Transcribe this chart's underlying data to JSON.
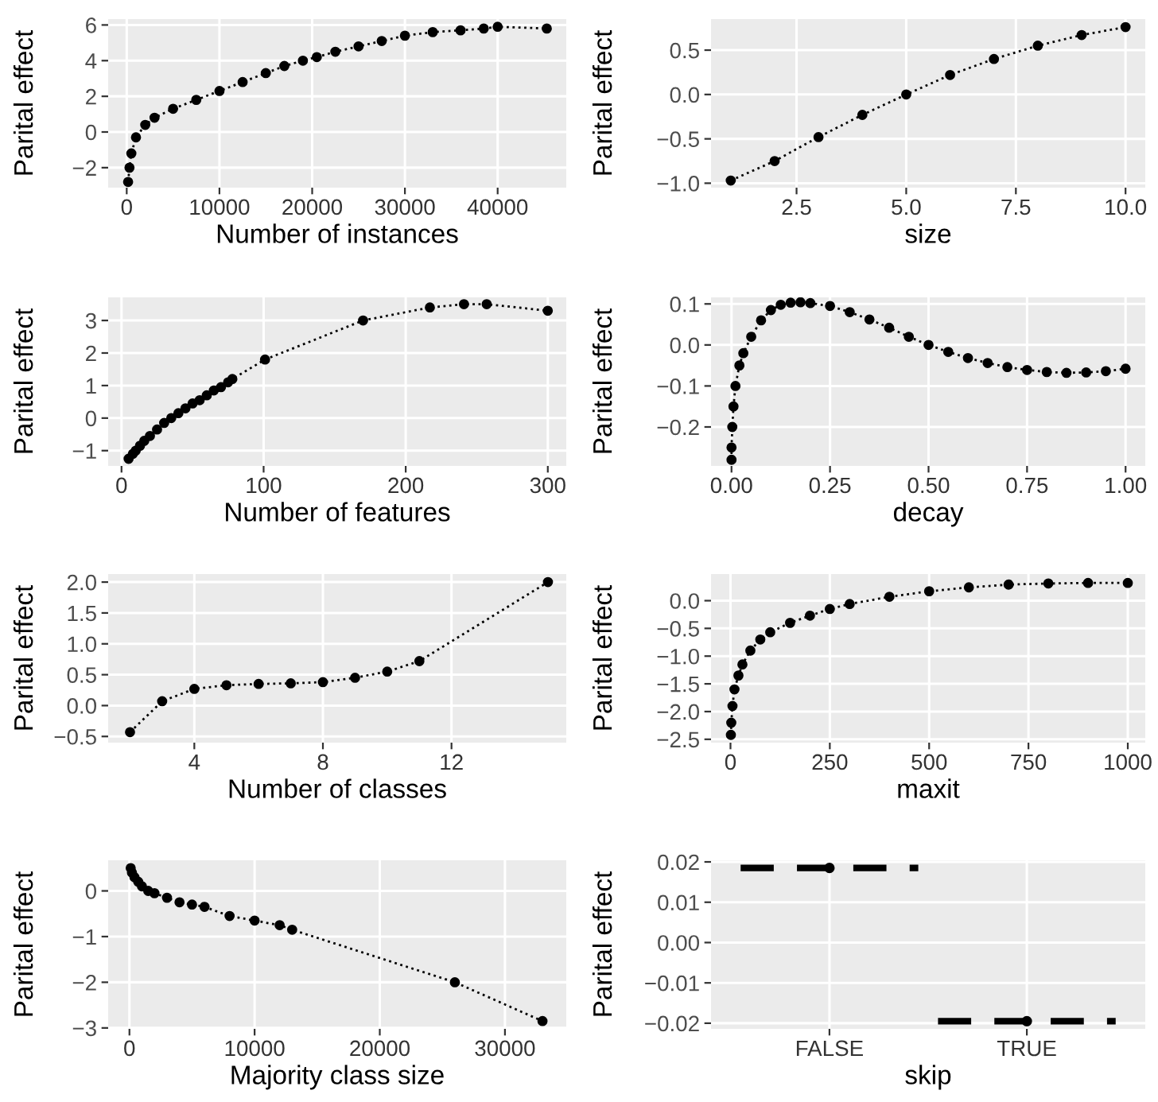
{
  "chart_data": [
    {
      "type": "line",
      "xlabel": "Number of instances",
      "ylabel": "Parital effect",
      "grid": true,
      "marker": "circle",
      "line_style": "dotted",
      "xlim": [
        -2000,
        47400
      ],
      "ylim": [
        -3.12,
        6.33
      ],
      "xticks": [
        0,
        10000,
        20000,
        30000,
        40000
      ],
      "yticks": [
        {
          "value": -2,
          "label": "−2"
        },
        0,
        2,
        4,
        6
      ],
      "x": [
        150,
        300,
        500,
        1000,
        2000,
        3000,
        5000,
        7500,
        10000,
        12500,
        15000,
        17000,
        19000,
        20500,
        22500,
        25000,
        27500,
        30000,
        33000,
        36000,
        38500,
        40000,
        45300
      ],
      "series": [
        {
          "color": "#000000",
          "values": [
            -2.8,
            -2.0,
            -1.2,
            -0.3,
            0.4,
            0.8,
            1.3,
            1.8,
            2.3,
            2.8,
            3.3,
            3.7,
            4.0,
            4.2,
            4.5,
            4.8,
            5.1,
            5.4,
            5.6,
            5.7,
            5.8,
            5.9,
            5.8
          ]
        }
      ]
    },
    {
      "type": "line",
      "xlabel": "size",
      "ylabel": "Parital effect",
      "grid": true,
      "marker": "circle",
      "line_style": "dotted",
      "xlim": [
        0.55,
        10.45
      ],
      "ylim": [
        -1.05,
        0.85
      ],
      "xticks": [
        2.5,
        {
          "value": 5,
          "label": "5.0"
        },
        7.5,
        {
          "value": 10,
          "label": "10.0"
        }
      ],
      "yticks": [
        {
          "value": -1,
          "label": "−1.0"
        },
        {
          "value": -0.5,
          "label": "−0.5"
        },
        {
          "value": 0,
          "label": "0.0"
        },
        0.5
      ],
      "x": [
        1,
        2,
        3,
        4,
        5,
        6,
        7,
        8,
        9,
        10
      ],
      "series": [
        {
          "color": "#000000",
          "values": [
            -0.97,
            -0.75,
            -0.48,
            -0.23,
            0.0,
            0.22,
            0.4,
            0.55,
            0.67,
            0.76
          ]
        }
      ]
    },
    {
      "type": "line",
      "xlabel": "Number of features",
      "ylabel": "Parital effect",
      "grid": true,
      "marker": "circle",
      "line_style": "dotted",
      "xlim": [
        -9.4,
        313
      ],
      "ylim": [
        -1.47,
        3.71
      ],
      "xticks": [
        0,
        100,
        200,
        300
      ],
      "yticks": [
        {
          "value": -1,
          "label": "−1"
        },
        0,
        1,
        2,
        3
      ],
      "x": [
        5,
        8,
        10,
        13,
        16,
        20,
        25,
        30,
        35,
        40,
        45,
        50,
        55,
        60,
        65,
        70,
        75,
        78,
        101,
        170,
        217,
        241,
        257,
        300
      ],
      "series": [
        {
          "color": "#000000",
          "values": [
            -1.25,
            -1.1,
            -1.0,
            -0.85,
            -0.7,
            -0.55,
            -0.35,
            -0.15,
            0.0,
            0.15,
            0.3,
            0.45,
            0.55,
            0.7,
            0.85,
            0.95,
            1.1,
            1.2,
            1.8,
            3.0,
            3.4,
            3.5,
            3.5,
            3.3
          ]
        }
      ]
    },
    {
      "type": "line",
      "xlabel": "decay",
      "ylabel": "Parital effect",
      "grid": true,
      "marker": "circle",
      "line_style": "dotted",
      "xlim": [
        -0.052,
        1.05
      ],
      "ylim": [
        -0.295,
        0.116
      ],
      "xticks": [
        {
          "value": 0,
          "label": "0.00"
        },
        0.25,
        {
          "value": 0.5,
          "label": "0.50"
        },
        0.75,
        {
          "value": 1,
          "label": "1.00"
        }
      ],
      "yticks": [
        {
          "value": -0.2,
          "label": "−0.2"
        },
        {
          "value": -0.1,
          "label": "−0.1"
        },
        {
          "value": 0,
          "label": "0.0"
        },
        0.1
      ],
      "x": [
        0,
        0,
        0.002,
        0.005,
        0.01,
        0.02,
        0.03,
        0.05,
        0.075,
        0.1,
        0.125,
        0.15,
        0.175,
        0.2,
        0.25,
        0.3,
        0.35,
        0.4,
        0.45,
        0.5,
        0.55,
        0.6,
        0.65,
        0.7,
        0.75,
        0.8,
        0.85,
        0.9,
        0.95,
        1.0
      ],
      "series": [
        {
          "color": "#000000",
          "values": [
            -0.28,
            -0.25,
            -0.2,
            -0.15,
            -0.1,
            -0.05,
            -0.02,
            0.02,
            0.06,
            0.085,
            0.098,
            0.103,
            0.104,
            0.102,
            0.095,
            0.08,
            0.062,
            0.042,
            0.02,
            0.0,
            -0.017,
            -0.032,
            -0.044,
            -0.054,
            -0.061,
            -0.066,
            -0.068,
            -0.067,
            -0.064,
            -0.058
          ]
        }
      ]
    },
    {
      "type": "line",
      "xlabel": "Number of classes",
      "ylabel": "Parital effect",
      "grid": true,
      "marker": "circle",
      "line_style": "dotted",
      "xlim": [
        1.32,
        15.57
      ],
      "ylim": [
        -0.6,
        2.13
      ],
      "xticks": [
        4,
        8,
        12
      ],
      "yticks": [
        {
          "value": -0.5,
          "label": "−0.5"
        },
        {
          "value": 0,
          "label": "0.0"
        },
        0.5,
        {
          "value": 1,
          "label": "1.0"
        },
        1.5,
        {
          "value": 2,
          "label": "2.0"
        }
      ],
      "x": [
        2,
        3,
        4,
        5,
        6,
        7,
        8,
        9,
        10,
        11,
        15
      ],
      "series": [
        {
          "color": "#000000",
          "values": [
            -0.43,
            0.07,
            0.27,
            0.33,
            0.35,
            0.36,
            0.38,
            0.45,
            0.55,
            0.72,
            2.0
          ]
        }
      ]
    },
    {
      "type": "line",
      "xlabel": "maxit",
      "ylabel": "Parital effect",
      "grid": true,
      "marker": "circle",
      "line_style": "dotted",
      "xlim": [
        -49,
        1044
      ],
      "ylim": [
        -2.56,
        0.48
      ],
      "xticks": [
        0,
        250,
        500,
        750,
        1000
      ],
      "yticks": [
        {
          "value": -2.5,
          "label": "−2.5"
        },
        {
          "value": -2,
          "label": "−2.0"
        },
        {
          "value": -1.5,
          "label": "−1.5"
        },
        {
          "value": -1,
          "label": "−1.0"
        },
        {
          "value": -0.5,
          "label": "−0.5"
        },
        {
          "value": 0,
          "label": "0.0"
        }
      ],
      "x": [
        1,
        2,
        5,
        10,
        20,
        30,
        50,
        75,
        100,
        150,
        200,
        250,
        300,
        400,
        500,
        600,
        700,
        800,
        900,
        1000
      ],
      "series": [
        {
          "color": "#000000",
          "values": [
            -2.42,
            -2.2,
            -1.9,
            -1.6,
            -1.35,
            -1.15,
            -0.9,
            -0.7,
            -0.57,
            -0.4,
            -0.27,
            -0.15,
            -0.06,
            0.07,
            0.17,
            0.24,
            0.29,
            0.31,
            0.32,
            0.32
          ]
        }
      ]
    },
    {
      "type": "line",
      "xlabel": "Majority class size",
      "ylabel": "Parital effect",
      "grid": true,
      "marker": "circle",
      "line_style": "dotted",
      "xlim": [
        -1700,
        34900
      ],
      "ylim": [
        -3.02,
        0.67
      ],
      "xticks": [
        0,
        10000,
        20000,
        30000
      ],
      "yticks": [
        {
          "value": -3,
          "label": "−3"
        },
        {
          "value": -2,
          "label": "−2"
        },
        {
          "value": -1,
          "label": "−1"
        },
        0
      ],
      "x": [
        100,
        200,
        400,
        700,
        1000,
        1500,
        2000,
        3000,
        4000,
        5000,
        6000,
        8000,
        10000,
        12000,
        13000,
        26000,
        33000
      ],
      "series": [
        {
          "color": "#000000",
          "values": [
            0.5,
            0.4,
            0.3,
            0.2,
            0.1,
            0.0,
            -0.05,
            -0.15,
            -0.25,
            -0.3,
            -0.35,
            -0.55,
            -0.65,
            -0.75,
            -0.85,
            -2.0,
            -2.85
          ]
        }
      ]
    },
    {
      "type": "scatter",
      "xlabel": "skip",
      "ylabel": "Parital effect",
      "grid": true,
      "marker": "circle",
      "ylim": [
        -0.0214,
        0.0204
      ],
      "yticks": [
        {
          "value": -0.02,
          "label": "−0.02"
        },
        {
          "value": -0.01,
          "label": "−0.01"
        },
        {
          "value": 0,
          "label": "0.00"
        },
        0.01,
        0.02
      ],
      "categories": [
        "FALSE",
        "TRUE"
      ],
      "series": [
        {
          "color": "#000000",
          "values": [
            0.0185,
            -0.0195
          ]
        }
      ],
      "ref_lines": [
        {
          "axis": "y",
          "value": 0.0185,
          "color": "#000000",
          "line_style": "dashed"
        },
        {
          "axis": "y",
          "value": -0.0195,
          "color": "#000000",
          "line_style": "dashed"
        }
      ]
    }
  ]
}
